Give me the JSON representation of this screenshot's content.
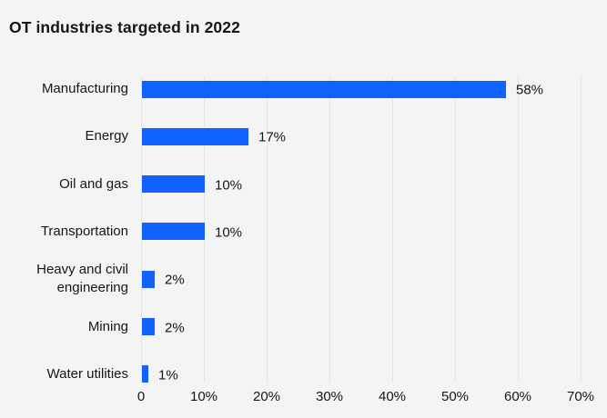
{
  "title": "OT industries targeted in 2022",
  "chart_data": {
    "type": "bar",
    "orientation": "horizontal",
    "title": "OT industries targeted in 2022",
    "categories": [
      "Manufacturing",
      "Energy",
      "Oil and gas",
      "Transportation",
      "Heavy and civil engineering",
      "Mining",
      "Water utilities"
    ],
    "values": [
      58,
      17,
      10,
      10,
      2,
      2,
      1
    ],
    "value_labels": [
      "58%",
      "17%",
      "10%",
      "10%",
      "2%",
      "2%",
      "1%"
    ],
    "xlabel": "",
    "ylabel": "",
    "xlim": [
      0,
      70
    ],
    "x_ticks": [
      0,
      10,
      20,
      30,
      40,
      50,
      60,
      70
    ],
    "x_tick_labels": [
      "0",
      "10%",
      "20%",
      "30%",
      "40%",
      "50%",
      "60%",
      "70%"
    ],
    "grid": "vertical-only",
    "legend": "none",
    "colors": {
      "bar": "#0f62fe",
      "background": "#f4f4f4",
      "gridline": "#e3e5ea",
      "text": "#161616"
    }
  }
}
